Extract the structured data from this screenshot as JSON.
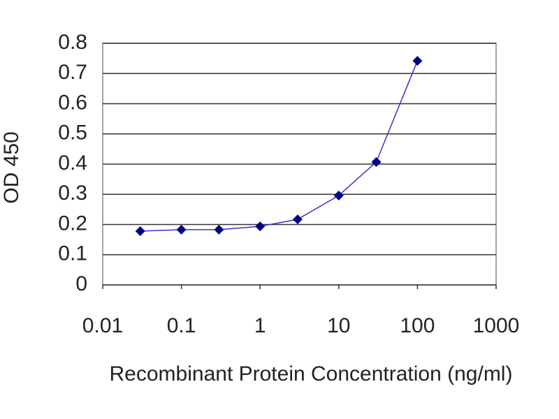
{
  "chart_data": {
    "type": "line",
    "xscale": "log",
    "x_label": "Recombinant Protein Concentration (ng/ml)",
    "y_label": "OD 450",
    "x": [
      0.03,
      0.1,
      0.3,
      1,
      3,
      10,
      30,
      100
    ],
    "values": [
      0.178,
      0.183,
      0.183,
      0.194,
      0.217,
      0.296,
      0.407,
      0.742
    ],
    "color": "#000080",
    "line_color": "#3333cc",
    "xlim": [
      0.01,
      1000
    ],
    "xticks": [
      0.01,
      0.1,
      1,
      10,
      100,
      1000
    ],
    "ylim": [
      0,
      0.8
    ],
    "yticks": [
      0,
      0.1,
      0.2,
      0.3,
      0.4,
      0.5,
      0.6,
      0.7,
      0.8
    ],
    "grid": true
  }
}
